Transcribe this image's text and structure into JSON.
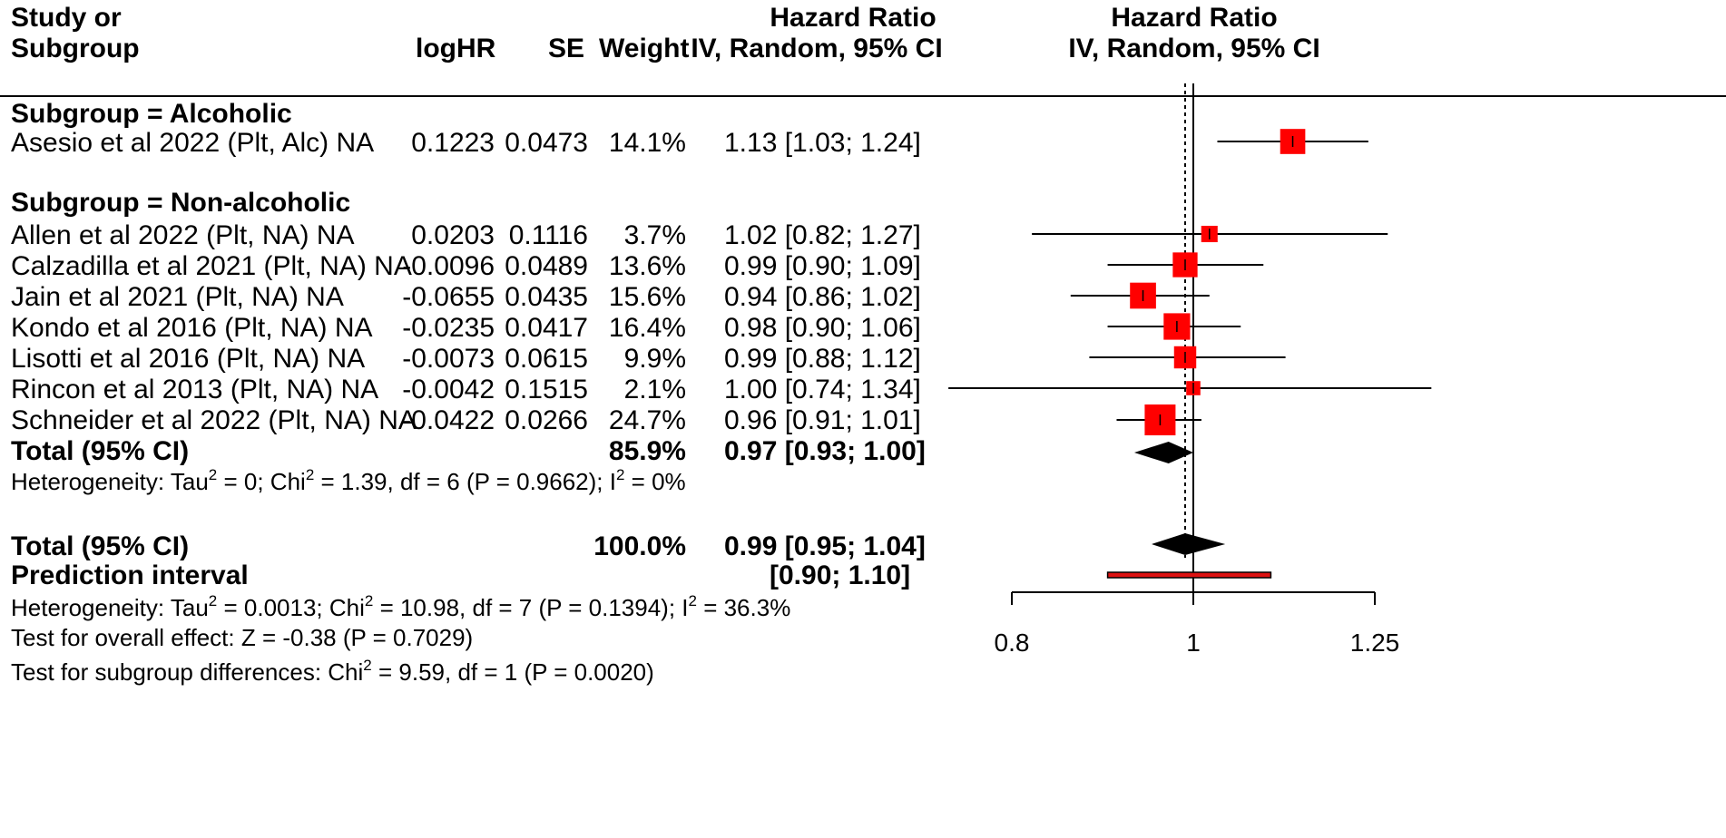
{
  "header": {
    "study_line1": "Study or",
    "study_line2": "Subgroup",
    "loghr": "logHR",
    "se": "SE",
    "weight": "Weight",
    "hr_line1": "Hazard Ratio",
    "hr_line2": "IV, Random, 95% CI",
    "plot_line1": "Hazard Ratio",
    "plot_line2": "IV, Random, 95% CI"
  },
  "subgroup_alcoholic": {
    "title": "Subgroup = Alcoholic",
    "studies": [
      {
        "study": "Asesio et al 2022 (Plt, Alc) NA",
        "loghr": "0.1223",
        "se": "0.0473",
        "weight": "14.1%",
        "ci": "1.13 [1.03; 1.24]"
      }
    ]
  },
  "subgroup_nonalcoholic": {
    "title": "Subgroup = Non-alcoholic",
    "studies": [
      {
        "study": "Allen et al 2022 (Plt, NA) NA",
        "loghr": "0.0203",
        "se": "0.1116",
        "weight": "3.7%",
        "ci": "1.02 [0.82; 1.27]"
      },
      {
        "study": "Calzadilla et al 2021 (Plt, NA) NA",
        "loghr": "-0.0096",
        "se": "0.0489",
        "weight": "13.6%",
        "ci": "0.99 [0.90; 1.09]"
      },
      {
        "study": "Jain et al 2021 (Plt, NA) NA",
        "loghr": "-0.0655",
        "se": "0.0435",
        "weight": "15.6%",
        "ci": "0.94 [0.86; 1.02]"
      },
      {
        "study": "Kondo et al 2016 (Plt, NA) NA",
        "loghr": "-0.0235",
        "se": "0.0417",
        "weight": "16.4%",
        "ci": "0.98 [0.90; 1.06]"
      },
      {
        "study": "Lisotti et al 2016 (Plt, NA) NA",
        "loghr": "-0.0073",
        "se": "0.0615",
        "weight": "9.9%",
        "ci": "0.99 [0.88; 1.12]"
      },
      {
        "study": "Rincon et al 2013 (Plt, NA) NA",
        "loghr": "-0.0042",
        "se": "0.1515",
        "weight": "2.1%",
        "ci": "1.00 [0.74; 1.34]"
      },
      {
        "study": "Schneider et al 2022 (Plt, NA) NA",
        "loghr": "-0.0422",
        "se": "0.0266",
        "weight": "24.7%",
        "ci": "0.96 [0.91; 1.01]"
      }
    ],
    "total_label": "Total (95% CI)",
    "total_weight": "85.9%",
    "total_ci": "0.97 [0.93; 1.00]",
    "het_prefix": "Heterogeneity: Tau",
    "het_sup1": "2",
    "het_mid1": " = 0; Chi",
    "het_sup2": "2",
    "het_mid2": " = 1.39, df = 6 (P = 0.9662); I",
    "het_sup3": "2",
    "het_end": " = 0%"
  },
  "overall": {
    "total_label": "Total (95% CI)",
    "total_weight": "100.0%",
    "total_ci": "0.99 [0.95; 1.04]",
    "pi_label": "Prediction interval",
    "pi_ci": "[0.90; 1.10]",
    "het_prefix": "Heterogeneity: Tau",
    "het_sup1": "2",
    "het_mid1": " = 0.0013; Chi",
    "het_sup2": "2",
    "het_mid2": " = 10.98, df = 7 (P = 0.1394); I",
    "het_sup3": "2",
    "het_end": " = 36.3%",
    "effect_test": "Test for overall effect: Z = -0.38 (P = 0.7029)",
    "sub_prefix": "Test for subgroup differences: Chi",
    "sub_sup": "2",
    "sub_end": " = 9.59, df = 1 (P = 0.0020)"
  },
  "chart_data": {
    "type": "forest",
    "title": "Hazard Ratio IV, Random, 95% CI",
    "xscale": "log",
    "xlim": [
      0.8,
      1.25
    ],
    "ticks": [
      0.8,
      1,
      1.25
    ],
    "tick_labels": [
      "0.8",
      "1",
      "1.25"
    ],
    "null_line": 1,
    "pooled_line": 0.99,
    "marker_color": "#ff0000",
    "studies": [
      {
        "name": "Asesio et al 2022 (Plt, Alc) NA",
        "hr": 1.13,
        "lo": 1.03,
        "hi": 1.24,
        "weight": 14.1
      },
      {
        "name": "Allen et al 2022 (Plt, NA) NA",
        "hr": 1.02,
        "lo": 0.82,
        "hi": 1.27,
        "weight": 3.7
      },
      {
        "name": "Calzadilla et al 2021 (Plt, NA) NA",
        "hr": 0.99,
        "lo": 0.9,
        "hi": 1.09,
        "weight": 13.6
      },
      {
        "name": "Jain et al 2021 (Plt, NA) NA",
        "hr": 0.94,
        "lo": 0.86,
        "hi": 1.02,
        "weight": 15.6
      },
      {
        "name": "Kondo et al 2016 (Plt, NA) NA",
        "hr": 0.98,
        "lo": 0.9,
        "hi": 1.06,
        "weight": 16.4
      },
      {
        "name": "Lisotti et al 2016 (Plt, NA) NA",
        "hr": 0.99,
        "lo": 0.88,
        "hi": 1.12,
        "weight": 9.9
      },
      {
        "name": "Rincon et al 2013 (Plt, NA) NA",
        "hr": 1.0,
        "lo": 0.74,
        "hi": 1.34,
        "weight": 2.1
      },
      {
        "name": "Schneider et al 2022 (Plt, NA) NA",
        "hr": 0.96,
        "lo": 0.91,
        "hi": 1.01,
        "weight": 24.7
      }
    ],
    "subgroup_total": {
      "hr": 0.97,
      "lo": 0.93,
      "hi": 1.0
    },
    "overall_total": {
      "hr": 0.99,
      "lo": 0.95,
      "hi": 1.04
    },
    "prediction_interval": {
      "lo": 0.9,
      "hi": 1.1
    }
  }
}
